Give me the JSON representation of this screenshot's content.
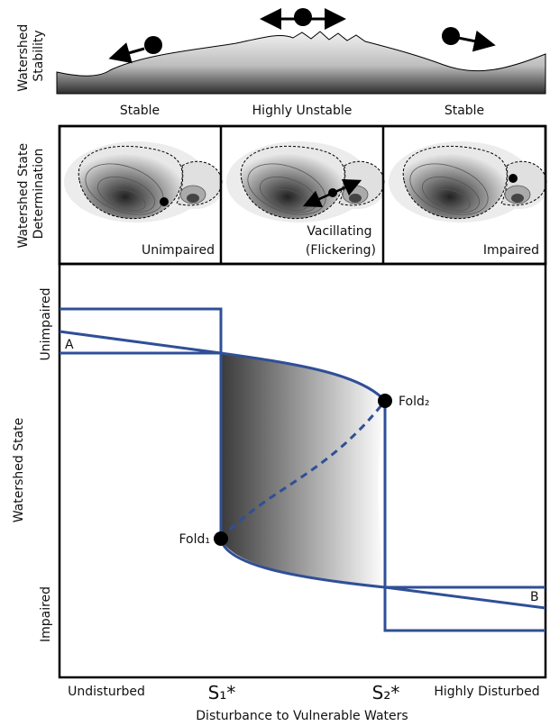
{
  "stability": {
    "label": [
      "Watershed",
      "Stability"
    ],
    "regions": [
      "Stable",
      "Highly Unstable",
      "Stable"
    ]
  },
  "determination": {
    "label": [
      "Watershed State",
      "Determination"
    ],
    "panels": [
      [
        "Unimpaired"
      ],
      [
        "Vacillating",
        "(Flickering)"
      ],
      [
        "Impaired"
      ]
    ]
  },
  "diagram": {
    "y_label": "Watershed State",
    "y_top": "Unimpaired",
    "y_bottom": "Impaired",
    "point_a": "A",
    "point_b": "B",
    "fold1": "Fold₁",
    "fold2": "Fold₂",
    "x_labels": [
      "Undisturbed",
      "S₁*",
      "S₂*",
      "Highly Disturbed"
    ],
    "x_label": "Disturbance to Vulnerable Waters"
  }
}
